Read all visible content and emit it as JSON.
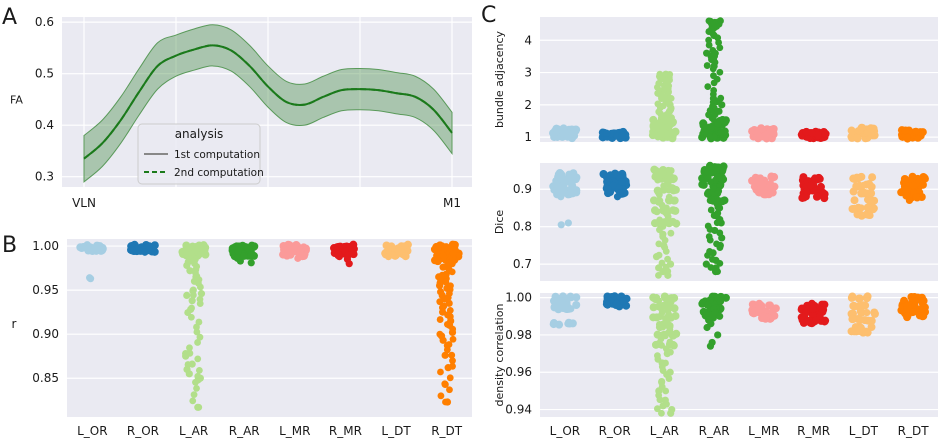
{
  "panel_labels": {
    "a": "A",
    "b": "B",
    "c": "C"
  },
  "colors": {
    "L_OR": "#a6cee3",
    "R_OR": "#1f78b4",
    "L_AR": "#b2df8a",
    "R_AR": "#33a02c",
    "L_MR": "#fb9a99",
    "R_MR": "#e31a1c",
    "L_DT": "#fdbf6f",
    "R_DT": "#ff7f00",
    "panel_bg": "#eaeaf2",
    "grid": "#ffffff",
    "profile_line": "#1b7a1b",
    "profile_band": "#5a9a5a"
  },
  "chart_data": [
    {
      "id": "A",
      "type": "line",
      "ylabel": "FA",
      "xlabel": "",
      "x_tick_labels": [
        "VLN",
        "M1"
      ],
      "ylim": [
        0.28,
        0.61
      ],
      "yticks": [
        0.3,
        0.4,
        0.5,
        0.6
      ],
      "x": [
        0,
        0.05,
        0.1,
        0.15,
        0.2,
        0.25,
        0.3,
        0.35,
        0.4,
        0.45,
        0.5,
        0.55,
        0.6,
        0.65,
        0.7,
        0.75,
        0.8,
        0.85,
        0.9,
        0.95,
        1.0
      ],
      "series": [
        {
          "name": "1st computation",
          "style": "solid",
          "values": [
            0.335,
            0.365,
            0.41,
            0.465,
            0.515,
            0.535,
            0.547,
            0.555,
            0.545,
            0.515,
            0.475,
            0.445,
            0.44,
            0.455,
            0.468,
            0.47,
            0.468,
            0.462,
            0.455,
            0.43,
            0.385
          ]
        },
        {
          "name": "2nd computation",
          "style": "dashed",
          "values": [
            0.335,
            0.365,
            0.41,
            0.465,
            0.515,
            0.535,
            0.547,
            0.555,
            0.545,
            0.515,
            0.475,
            0.445,
            0.44,
            0.455,
            0.468,
            0.47,
            0.468,
            0.462,
            0.455,
            0.43,
            0.385
          ]
        }
      ],
      "band": {
        "lower": [
          0.29,
          0.32,
          0.365,
          0.42,
          0.47,
          0.495,
          0.507,
          0.515,
          0.505,
          0.475,
          0.435,
          0.405,
          0.4,
          0.415,
          0.428,
          0.43,
          0.428,
          0.422,
          0.415,
          0.39,
          0.345
        ],
        "upper": [
          0.38,
          0.41,
          0.455,
          0.51,
          0.56,
          0.575,
          0.587,
          0.595,
          0.585,
          0.555,
          0.515,
          0.485,
          0.48,
          0.495,
          0.508,
          0.51,
          0.508,
          0.502,
          0.495,
          0.47,
          0.425
        ]
      },
      "legend": {
        "title": "analysis",
        "placement": "lower-center"
      },
      "grid": true
    },
    {
      "id": "B",
      "type": "scatter",
      "ylabel": "r",
      "categories": [
        "L_OR",
        "R_OR",
        "L_AR",
        "R_AR",
        "L_MR",
        "R_MR",
        "L_DT",
        "R_DT"
      ],
      "ylim": [
        0.806,
        1.008
      ],
      "yticks": [
        0.85,
        0.9,
        0.95,
        1.0
      ],
      "yticklabels": [
        "0.85",
        "0.90",
        "0.95",
        "1.00"
      ],
      "points": [
        [
          1.0,
          0.999,
          0.998,
          0.997,
          0.996,
          0.995,
          0.964,
          0.963
        ],
        [
          1.0,
          0.999,
          0.998,
          0.997,
          0.996,
          0.995,
          0.994,
          0.993
        ],
        [
          1.0,
          0.998,
          0.996,
          0.994,
          0.992,
          0.99,
          0.988,
          0.985,
          0.982,
          0.978,
          0.972,
          0.965,
          0.96,
          0.95,
          0.946,
          0.944,
          0.938,
          0.928,
          0.878,
          0.875,
          0.866,
          0.86,
          0.855,
          0.85,
          0.848,
          0.817
        ],
        [
          1.0,
          0.998,
          0.996,
          0.994,
          0.992,
          0.99,
          0.988,
          0.986,
          0.983,
          0.981
        ],
        [
          1.0,
          0.998,
          0.996,
          0.994,
          0.992,
          0.99,
          0.988,
          0.986
        ],
        [
          1.0,
          0.998,
          0.996,
          0.994,
          0.992,
          0.99,
          0.988,
          0.985,
          0.98
        ],
        [
          1.0,
          0.998,
          0.996,
          0.994,
          0.992,
          0.99,
          0.988
        ],
        [
          1.0,
          0.998,
          0.995,
          0.992,
          0.988,
          0.984,
          0.98,
          0.976,
          0.972,
          0.968,
          0.965,
          0.962,
          0.958,
          0.955,
          0.952,
          0.948,
          0.944,
          0.94,
          0.935,
          0.93,
          0.925,
          0.92,
          0.915,
          0.91,
          0.902,
          0.898,
          0.893,
          0.887,
          0.876,
          0.862,
          0.843,
          0.823
        ]
      ],
      "grid": true
    },
    {
      "id": "C1",
      "type": "scatter",
      "ylabel": "bundle adjacency",
      "categories": [
        "L_OR",
        "R_OR",
        "L_AR",
        "R_AR",
        "L_MR",
        "R_MR",
        "L_DT",
        "R_DT"
      ],
      "ylim": [
        0.85,
        4.72
      ],
      "yticks": [
        1,
        2,
        3,
        4
      ],
      "yticklabels": [
        "1",
        "2",
        "3",
        "4"
      ],
      "points": [
        [
          1.0,
          1.05,
          1.1,
          1.15,
          1.2,
          1.25
        ],
        [
          1.0,
          1.03,
          1.06,
          1.1,
          1.12
        ],
        [
          1.0,
          1.1,
          1.2,
          1.3,
          1.4,
          1.5,
          1.6,
          1.7,
          1.8,
          1.9,
          2.0,
          2.1,
          2.2,
          2.3,
          2.4,
          2.5,
          2.6,
          2.7,
          2.8,
          2.95
        ],
        [
          1.0,
          1.1,
          1.2,
          1.3,
          1.4,
          1.5,
          1.6,
          1.7,
          1.8,
          1.9,
          2.0,
          2.1,
          2.2,
          3.2,
          3.4,
          3.5,
          3.6,
          4.15,
          4.35,
          4.45,
          4.5,
          4.55,
          4.6
        ],
        [
          1.0,
          1.05,
          1.1,
          1.15,
          1.2,
          1.25
        ],
        [
          1.0,
          1.04,
          1.08,
          1.12,
          1.15
        ],
        [
          1.0,
          1.05,
          1.1,
          1.15,
          1.2,
          1.25,
          1.3
        ],
        [
          1.0,
          1.04,
          1.08,
          1.12,
          1.15,
          1.18
        ]
      ],
      "grid": true
    },
    {
      "id": "C2",
      "type": "scatter",
      "ylabel": "Dice",
      "categories": [
        "L_OR",
        "R_OR",
        "L_AR",
        "R_AR",
        "L_MR",
        "R_MR",
        "L_DT",
        "R_DT"
      ],
      "ylim": [
        0.655,
        0.97
      ],
      "yticks": [
        0.7,
        0.8,
        0.9
      ],
      "yticklabels": [
        "0.7",
        "0.8",
        "0.9"
      ],
      "points": [
        [
          0.94,
          0.93,
          0.92,
          0.91,
          0.9,
          0.89,
          0.88,
          0.81,
          0.805
        ],
        [
          0.94,
          0.93,
          0.92,
          0.91,
          0.9,
          0.89,
          0.88
        ],
        [
          0.95,
          0.93,
          0.9,
          0.87,
          0.84,
          0.81,
          0.78,
          0.75,
          0.72,
          0.7,
          0.69,
          0.68,
          0.67
        ],
        [
          0.96,
          0.95,
          0.93,
          0.91,
          0.89,
          0.87,
          0.85,
          0.83,
          0.81,
          0.79,
          0.77,
          0.75,
          0.73,
          0.71,
          0.7,
          0.69,
          0.68
        ],
        [
          0.93,
          0.92,
          0.91,
          0.9,
          0.89
        ],
        [
          0.93,
          0.92,
          0.91,
          0.9,
          0.89,
          0.88
        ],
        [
          0.93,
          0.91,
          0.89,
          0.87,
          0.85,
          0.83
        ],
        [
          0.93,
          0.92,
          0.91,
          0.9,
          0.89,
          0.88,
          0.87
        ]
      ],
      "grid": true
    },
    {
      "id": "C3",
      "type": "scatter",
      "ylabel": "density correlation",
      "categories": [
        "L_OR",
        "R_OR",
        "L_AR",
        "R_AR",
        "L_MR",
        "R_MR",
        "L_DT",
        "R_DT"
      ],
      "ylim": [
        0.936,
        1.0025
      ],
      "yticks": [
        0.94,
        0.96,
        0.98,
        1.0
      ],
      "yticklabels": [
        "0.94",
        "0.96",
        "0.98",
        "1.00"
      ],
      "points": [
        [
          1.0,
          0.998,
          0.996,
          0.994,
          0.986
        ],
        [
          1.0,
          0.999,
          0.998,
          0.997,
          0.996
        ],
        [
          1.0,
          0.995,
          0.99,
          0.985,
          0.98,
          0.975,
          0.97,
          0.965,
          0.96,
          0.955,
          0.95,
          0.945,
          0.942,
          0.94,
          0.938
        ],
        [
          1.0,
          0.998,
          0.996,
          0.994,
          0.992,
          0.99,
          0.988,
          0.986,
          0.984,
          0.98,
          0.976,
          0.974
        ],
        [
          0.996,
          0.994,
          0.992,
          0.99,
          0.989
        ],
        [
          0.996,
          0.994,
          0.992,
          0.99,
          0.988,
          0.987
        ],
        [
          1.0,
          0.996,
          0.992,
          0.988,
          0.984,
          0.982
        ],
        [
          1.0,
          0.998,
          0.996,
          0.994,
          0.992,
          0.99
        ]
      ],
      "grid": true
    }
  ]
}
